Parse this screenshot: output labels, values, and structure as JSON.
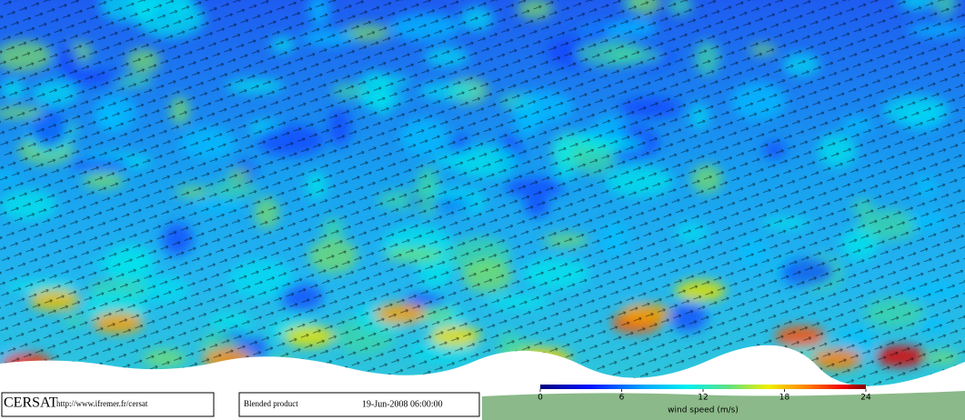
{
  "footer": {
    "logo": "CERSAT",
    "url": "http://www.ifremer.fr/cersat",
    "product": "Blended product",
    "datetime": "19-Jun-2008 06:00:00"
  },
  "colorbar": {
    "label": "wind speed (m/s)",
    "lim": [
      0,
      24
    ],
    "ticks": [
      0,
      6,
      12,
      18,
      24
    ]
  }
}
